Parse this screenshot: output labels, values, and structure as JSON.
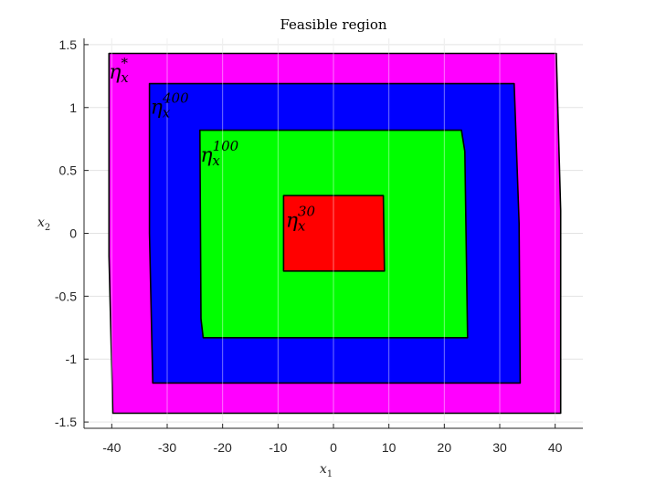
{
  "chart_data": {
    "type": "area",
    "title": "Feasible region",
    "xlabel": "x",
    "xlabel_sub": "1",
    "ylabel": "x",
    "ylabel_sub": "2",
    "xlim": [
      -45,
      45
    ],
    "ylim": [
      -1.55,
      1.55
    ],
    "xticks": [
      -40,
      -30,
      -20,
      -10,
      0,
      10,
      20,
      30,
      40
    ],
    "yticks": [
      -1.5,
      -1,
      -0.5,
      0,
      0.5,
      1,
      1.5
    ],
    "xtick_labels": [
      "-40",
      "-30",
      "-20",
      "-10",
      "0",
      "10",
      "20",
      "30",
      "40"
    ],
    "ytick_labels": [
      "-1.5",
      "-1",
      "-0.5",
      "0",
      "0.5",
      "1",
      "1.5"
    ],
    "grid": true,
    "series": [
      {
        "label": "η",
        "label_sub": "x",
        "label_sup": "*",
        "color": "#ff00ff",
        "polygon": [
          [
            -40.5,
            1.43
          ],
          [
            40.2,
            1.43
          ],
          [
            41.0,
            0.18
          ],
          [
            41.0,
            -1.43
          ],
          [
            -39.8,
            -1.43
          ],
          [
            -40.5,
            -0.18
          ]
        ]
      },
      {
        "label": "η",
        "label_sub": "x",
        "label_sup": "400",
        "color": "#0000ff",
        "polygon": [
          [
            -33.2,
            1.19
          ],
          [
            32.6,
            1.19
          ],
          [
            33.5,
            0.08
          ],
          [
            33.7,
            -1.19
          ],
          [
            -32.6,
            -1.19
          ],
          [
            -33.2,
            0.0
          ]
        ]
      },
      {
        "label": "η",
        "label_sub": "x",
        "label_sup": "100",
        "color": "#00ff00",
        "polygon": [
          [
            -24.1,
            0.82
          ],
          [
            23.1,
            0.82
          ],
          [
            23.7,
            0.65
          ],
          [
            24.2,
            -0.83
          ],
          [
            -23.5,
            -0.83
          ],
          [
            -23.9,
            -0.68
          ]
        ]
      },
      {
        "label": "η",
        "label_sub": "x",
        "label_sup": "30",
        "color": "#ff0000",
        "polygon": [
          [
            -9.0,
            0.3
          ],
          [
            9.0,
            0.3
          ],
          [
            9.2,
            -0.3
          ],
          [
            -9.0,
            -0.3
          ]
        ]
      }
    ],
    "label_anchors": [
      [
        -40.5,
        1.23
      ],
      [
        -33.0,
        0.95
      ],
      [
        -24.0,
        0.57
      ],
      [
        -8.6,
        0.05
      ]
    ]
  }
}
